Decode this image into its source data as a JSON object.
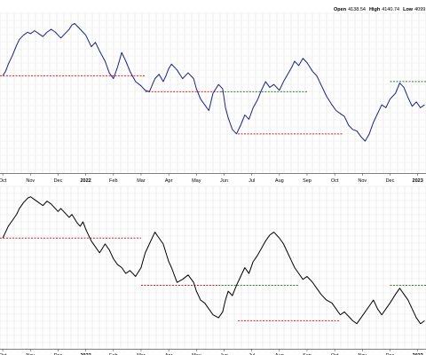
{
  "header": {
    "items": [
      {
        "label": "Open",
        "value": "4138.54"
      },
      {
        "label": "High",
        "value": "4140.74"
      },
      {
        "label": "Low",
        "value": "4099.1"
      }
    ]
  },
  "colors": {
    "top_line": "#1a237e",
    "bottom_line": "#000000",
    "support": "#c62828",
    "resistance": "#2e7d32",
    "grid": "#e3e3e3",
    "axis": "#555555"
  },
  "chart_data": [
    {
      "type": "line",
      "panel": "top",
      "x_labels": [
        "Oct",
        "Nov",
        "Dec",
        "2022",
        "Feb",
        "Mar",
        "Apr",
        "May",
        "Jun",
        "Jul",
        "Aug",
        "Sep",
        "Oct",
        "Nov",
        "Dec",
        "2023"
      ],
      "x_labels_bold": [
        "2022",
        "2023"
      ],
      "x_ticks": [
        0,
        1,
        2,
        3,
        4,
        5,
        6,
        7,
        8,
        9,
        10,
        11,
        12,
        13,
        14,
        15
      ],
      "xlim": [
        -0.1,
        15.3
      ],
      "ylim": [
        -5,
        105
      ],
      "grid": true,
      "series": [
        {
          "x": [
            0.0,
            0.1,
            0.2,
            0.35,
            0.5,
            0.6,
            0.75,
            0.9,
            1.0,
            1.15,
            1.3,
            1.45,
            1.6,
            1.75,
            1.9,
            2.0,
            2.1,
            2.25,
            2.4,
            2.5,
            2.6,
            2.7,
            2.8,
            2.9,
            3.0,
            3.1,
            3.2,
            3.35,
            3.5,
            3.7,
            3.85,
            4.0,
            4.15,
            4.3,
            4.45,
            4.6,
            4.8,
            5.0,
            5.15,
            5.3,
            5.5,
            5.65,
            5.8,
            5.9,
            6.0,
            6.1,
            6.3,
            6.5,
            6.7,
            6.9,
            7.0,
            7.15,
            7.3,
            7.45,
            7.6,
            7.8,
            7.95,
            8.05,
            8.15,
            8.3,
            8.45,
            8.6,
            8.75,
            8.9,
            9.05,
            9.2,
            9.35,
            9.5,
            9.65,
            9.8,
            10.0,
            10.15,
            10.3,
            10.45,
            10.55,
            10.7,
            10.85,
            11.0,
            11.2,
            11.35,
            11.5,
            11.7,
            11.9,
            12.05,
            12.2,
            12.35,
            12.5,
            12.65,
            12.8,
            12.95,
            13.1,
            13.25,
            13.4,
            13.55,
            13.7,
            13.85,
            14.0,
            14.2,
            14.35,
            14.5,
            14.65,
            14.8,
            14.95,
            15.1,
            15.25
          ],
          "y": [
            62,
            65,
            70,
            76,
            83,
            87,
            90,
            92,
            91,
            93,
            91,
            89,
            92,
            94,
            92,
            90,
            88,
            91,
            94,
            97,
            98,
            96,
            94,
            92,
            90,
            86,
            82,
            85,
            79,
            72,
            64,
            60,
            68,
            78,
            72,
            65,
            58,
            55,
            52,
            51,
            60,
            63,
            58,
            62,
            67,
            70,
            66,
            60,
            64,
            60,
            53,
            46,
            42,
            38,
            50,
            56,
            53,
            40,
            33,
            25,
            22,
            28,
            35,
            32,
            40,
            45,
            52,
            58,
            54,
            56,
            52,
            58,
            63,
            68,
            72,
            69,
            74,
            71,
            65,
            62,
            56,
            48,
            42,
            38,
            36,
            34,
            28,
            25,
            24,
            20,
            17,
            22,
            30,
            36,
            42,
            40,
            46,
            50,
            57,
            54,
            47,
            41,
            44,
            40,
            42
          ]
        }
      ],
      "levels": [
        {
          "kind": "support",
          "x": [
            -0.1,
            5.15
          ],
          "y": 62
        },
        {
          "kind": "support",
          "x": [
            5.15,
            7.9
          ],
          "y": 51
        },
        {
          "kind": "resistance",
          "x": [
            7.9,
            11.0
          ],
          "y": 51
        },
        {
          "kind": "support",
          "x": [
            8.5,
            12.3
          ],
          "y": 22
        },
        {
          "kind": "resistance",
          "x": [
            14.0,
            15.3
          ],
          "y": 58
        }
      ]
    },
    {
      "type": "line",
      "panel": "bottom",
      "x_labels": [
        "Oct",
        "Nov",
        "Dec",
        "2022",
        "Feb",
        "Mar",
        "Apr",
        "May",
        "Jun",
        "Jul",
        "Aug",
        "Sep",
        "Oct",
        "Nov",
        "Dec",
        "2023"
      ],
      "x_labels_bold": [
        "2022",
        "2023"
      ],
      "x_ticks": [
        0,
        1,
        2,
        3,
        4,
        5,
        6,
        7,
        8,
        9,
        10,
        11,
        12,
        13,
        14,
        15
      ],
      "xlim": [
        -0.1,
        15.3
      ],
      "ylim": [
        -5,
        105
      ],
      "grid": true,
      "series": [
        {
          "x": [
            0.0,
            0.1,
            0.2,
            0.35,
            0.5,
            0.6,
            0.75,
            0.9,
            1.0,
            1.15,
            1.3,
            1.45,
            1.6,
            1.75,
            1.9,
            2.0,
            2.1,
            2.25,
            2.4,
            2.5,
            2.6,
            2.7,
            2.8,
            2.9,
            3.0,
            3.1,
            3.2,
            3.35,
            3.5,
            3.7,
            3.85,
            4.0,
            4.15,
            4.3,
            4.45,
            4.6,
            4.8,
            5.0,
            5.15,
            5.3,
            5.5,
            5.65,
            5.8,
            5.9,
            6.0,
            6.1,
            6.3,
            6.5,
            6.7,
            6.9,
            7.0,
            7.15,
            7.3,
            7.45,
            7.6,
            7.8,
            7.95,
            8.05,
            8.15,
            8.3,
            8.45,
            8.6,
            8.75,
            8.9,
            9.05,
            9.2,
            9.35,
            9.5,
            9.65,
            9.8,
            10.0,
            10.15,
            10.3,
            10.45,
            10.55,
            10.7,
            10.85,
            11.0,
            11.2,
            11.35,
            11.5,
            11.7,
            11.9,
            12.05,
            12.2,
            12.35,
            12.5,
            12.65,
            12.8,
            12.95,
            13.1,
            13.25,
            13.4,
            13.55,
            13.7,
            13.85,
            14.0,
            14.2,
            14.35,
            14.5,
            14.65,
            14.8,
            14.95,
            15.1,
            15.25
          ],
          "y": [
            70,
            74,
            78,
            82,
            86,
            90,
            94,
            97,
            98,
            96,
            94,
            92,
            95,
            93,
            90,
            88,
            90,
            87,
            84,
            86,
            83,
            80,
            78,
            81,
            76,
            72,
            68,
            64,
            60,
            66,
            62,
            56,
            52,
            50,
            46,
            48,
            44,
            50,
            60,
            66,
            74,
            70,
            66,
            60,
            54,
            50,
            40,
            42,
            45,
            40,
            34,
            28,
            26,
            22,
            18,
            16,
            20,
            28,
            34,
            31,
            38,
            44,
            50,
            46,
            54,
            58,
            63,
            68,
            72,
            74,
            70,
            66,
            60,
            54,
            50,
            46,
            42,
            44,
            40,
            36,
            32,
            28,
            26,
            22,
            18,
            20,
            17,
            14,
            12,
            16,
            20,
            24,
            28,
            22,
            18,
            22,
            26,
            32,
            36,
            32,
            28,
            22,
            16,
            12,
            14
          ]
        }
      ],
      "levels": [
        {
          "kind": "support",
          "x": [
            -0.1,
            5.0
          ],
          "y": 70
        },
        {
          "kind": "support",
          "x": [
            5.0,
            7.8
          ],
          "y": 38
        },
        {
          "kind": "resistance",
          "x": [
            7.8,
            10.7
          ],
          "y": 38
        },
        {
          "kind": "support",
          "x": [
            8.5,
            12.2
          ],
          "y": 14
        },
        {
          "kind": "resistance",
          "x": [
            14.0,
            15.3
          ],
          "y": 38
        }
      ]
    }
  ]
}
